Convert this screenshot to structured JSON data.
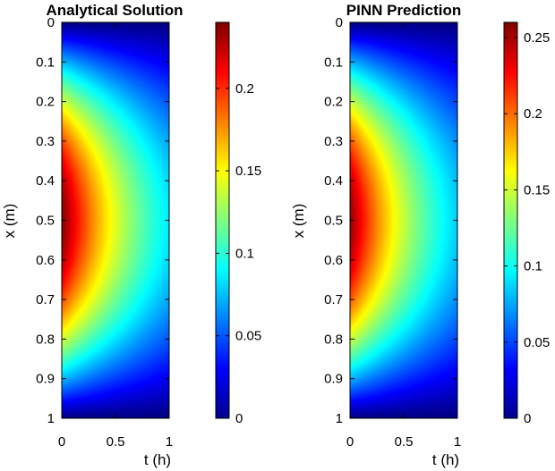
{
  "chart_data": [
    {
      "type": "heatmap",
      "title": "Analytical Solution",
      "xlabel": "t (h)",
      "ylabel": "x (m)",
      "xlim": [
        0,
        1
      ],
      "ylim": [
        0,
        1
      ],
      "y_reversed": true,
      "xticks": [
        "0",
        "0.5",
        "1"
      ],
      "yticks": [
        "0",
        "0.1",
        "0.2",
        "0.3",
        "0.4",
        "0.5",
        "0.6",
        "0.7",
        "0.8",
        "0.9",
        "1"
      ],
      "colormap": "jet",
      "color_range": [
        0,
        0.24
      ],
      "colorbar_ticks": [
        "0",
        "0.05",
        "0.1",
        "0.15",
        "0.2"
      ],
      "field": {
        "description": "peak at x=0.5, t=0; decays with t and toward x=0 and x=1",
        "peak_value": 0.24,
        "value_at_t1_x05": 0.085
      }
    },
    {
      "type": "heatmap",
      "title": "PINN Prediction",
      "xlabel": "t (h)",
      "ylabel": "x (m)",
      "xlim": [
        0,
        1
      ],
      "ylim": [
        0,
        1
      ],
      "y_reversed": true,
      "xticks": [
        "0",
        "0.5",
        "1"
      ],
      "yticks": [
        "0",
        "0.1",
        "0.2",
        "0.3",
        "0.4",
        "0.5",
        "0.6",
        "0.7",
        "0.8",
        "0.9",
        "1"
      ],
      "colormap": "jet",
      "color_range": [
        0,
        0.26
      ],
      "colorbar_ticks": [
        "0",
        "0.05",
        "0.1",
        "0.15",
        "0.2",
        "0.25"
      ],
      "field": {
        "description": "peak at x=0.5, t=0; decays with t and toward x=0 and x=1",
        "peak_value": 0.255,
        "value_at_t1_x05": 0.085
      }
    }
  ]
}
